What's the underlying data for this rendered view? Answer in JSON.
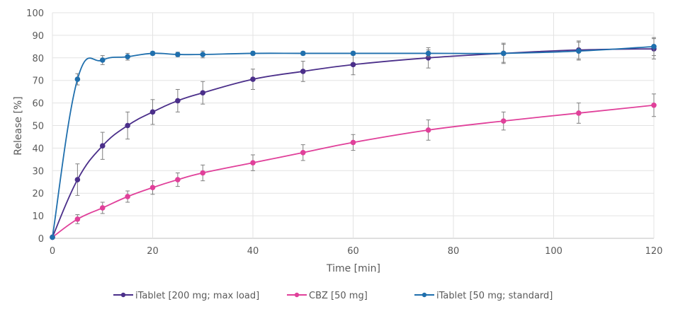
{
  "chart_data": {
    "type": "line",
    "title": "",
    "xlabel": "Time [min]",
    "ylabel": "Release [%]",
    "xlim": [
      0,
      120
    ],
    "ylim": [
      0,
      100
    ],
    "xticks": [
      0,
      20,
      40,
      60,
      80,
      100,
      120
    ],
    "yticks": [
      0,
      10,
      20,
      30,
      40,
      50,
      60,
      70,
      80,
      90,
      100
    ],
    "grid": true,
    "legend_position": "bottom",
    "x": [
      0,
      5,
      10,
      15,
      20,
      25,
      30,
      40,
      50,
      60,
      75,
      90,
      105,
      120
    ],
    "series": [
      {
        "name": "iTablet [200 mg; max load]",
        "color": "#4b2f8a",
        "values": [
          0.5,
          26,
          41,
          50,
          56,
          61,
          64.5,
          70.5,
          74,
          77,
          80,
          82,
          83.5,
          84
        ],
        "errors": [
          0,
          7,
          6,
          6,
          5.5,
          5,
          5,
          4.5,
          4.5,
          4.5,
          4.5,
          4.5,
          4,
          4.5
        ]
      },
      {
        "name": "CBZ [50 mg]",
        "color": "#e0409a",
        "values": [
          0.5,
          8.5,
          13.5,
          18.5,
          22.5,
          26,
          29,
          33.5,
          38,
          42.5,
          48,
          52,
          55.5,
          59
        ],
        "errors": [
          0,
          2,
          2.5,
          2.5,
          3,
          3,
          3.5,
          3.5,
          3.5,
          3.5,
          4.5,
          4,
          4.5,
          5
        ]
      },
      {
        "name": "iTablet [50 mg; standard]",
        "color": "#1f6fad",
        "values": [
          0.5,
          70.5,
          79,
          80.5,
          82,
          81.5,
          81.5,
          82,
          82,
          82,
          82,
          82,
          83,
          85
        ],
        "errors": [
          0,
          2.5,
          2,
          1.5,
          0.8,
          1,
          1.5,
          0.8,
          0.8,
          0.8,
          1.5,
          4,
          4,
          4
        ]
      }
    ]
  }
}
